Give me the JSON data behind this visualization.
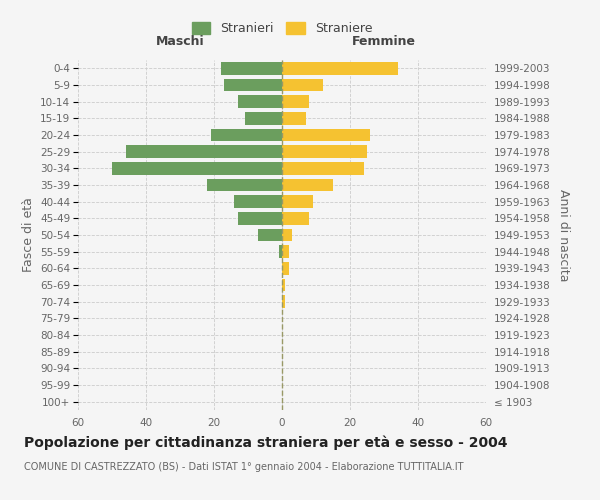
{
  "age_groups": [
    "100+",
    "95-99",
    "90-94",
    "85-89",
    "80-84",
    "75-79",
    "70-74",
    "65-69",
    "60-64",
    "55-59",
    "50-54",
    "45-49",
    "40-44",
    "35-39",
    "30-34",
    "25-29",
    "20-24",
    "15-19",
    "10-14",
    "5-9",
    "0-4"
  ],
  "birth_years": [
    "≤ 1903",
    "1904-1908",
    "1909-1913",
    "1914-1918",
    "1919-1923",
    "1924-1928",
    "1929-1933",
    "1934-1938",
    "1939-1943",
    "1944-1948",
    "1949-1953",
    "1954-1958",
    "1959-1963",
    "1964-1968",
    "1969-1973",
    "1974-1978",
    "1979-1983",
    "1984-1988",
    "1989-1993",
    "1994-1998",
    "1999-2003"
  ],
  "males": [
    0,
    0,
    0,
    0,
    0,
    0,
    0,
    0,
    0,
    1,
    7,
    13,
    14,
    22,
    50,
    46,
    21,
    11,
    13,
    17,
    18
  ],
  "females": [
    0,
    0,
    0,
    0,
    0,
    0,
    1,
    1,
    2,
    2,
    3,
    8,
    9,
    15,
    24,
    25,
    26,
    7,
    8,
    12,
    34
  ],
  "male_color": "#6b9e5e",
  "female_color": "#f5c231",
  "background_color": "#f5f5f5",
  "grid_color": "#cccccc",
  "title": "Popolazione per cittadinanza straniera per età e sesso - 2004",
  "subtitle": "COMUNE DI CASTREZZATO (BS) - Dati ISTAT 1° gennaio 2004 - Elaborazione TUTTITALIA.IT",
  "xlabel_left": "Maschi",
  "xlabel_right": "Femmine",
  "ylabel_left": "Fasce di età",
  "ylabel_right": "Anni di nascita",
  "legend_stranieri": "Stranieri",
  "legend_straniere": "Straniere",
  "xlim": 60,
  "title_fontsize": 10,
  "subtitle_fontsize": 7,
  "tick_fontsize": 7.5,
  "label_fontsize": 9
}
